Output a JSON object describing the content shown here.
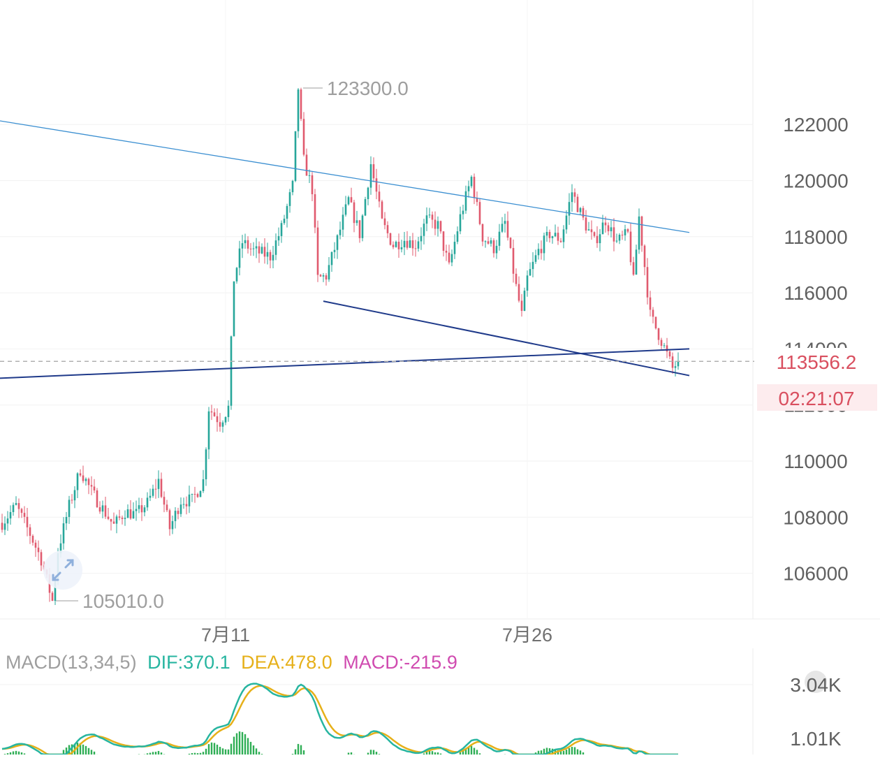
{
  "chart_data": [
    {
      "type": "candlestick",
      "y_axis_ticks": [
        "122000",
        "120000",
        "118000",
        "116000",
        "114000",
        "112000",
        "110000",
        "108000",
        "106000"
      ],
      "x_axis_ticks": [
        "7月11",
        "7月26"
      ],
      "ylim": [
        104700,
        123900
      ],
      "annotations": {
        "high_label": "123300.0",
        "low_label": "105010.0"
      },
      "current_price": {
        "value": 113556.2,
        "label": "113556.2",
        "countdown": "02:21:07"
      },
      "colors": {
        "up": "#26a69a",
        "down": "#e05a6e",
        "current_price": "#e05a6e",
        "resistance_line": "#3b8fd1",
        "channel_line": "#1f3a8a"
      },
      "trendlines": [
        {
          "name": "upper-resistance",
          "from": {
            "index": -2,
            "price": 122150
          },
          "to": {
            "index": 246,
            "price": 118150
          }
        },
        {
          "name": "lower-support",
          "from": {
            "index": 115,
            "price": 115700
          },
          "to": {
            "index": 246,
            "price": 113050
          }
        },
        {
          "name": "horizontal-support",
          "from": {
            "index": -2,
            "price": 112950
          },
          "to": {
            "index": 246,
            "price": 114000
          }
        }
      ]
    },
    {
      "type": "line",
      "title": "MACD(13,34,5)",
      "legend": [
        {
          "label": "DIF:370.1",
          "color": "#27b5a0"
        },
        {
          "label": "DEA:478.0",
          "color": "#e6b019"
        },
        {
          "label": "MACD:-215.9",
          "color": "#d04bb0"
        }
      ],
      "y_axis_ticks": [
        "3.04K",
        "1.01K"
      ]
    }
  ]
}
